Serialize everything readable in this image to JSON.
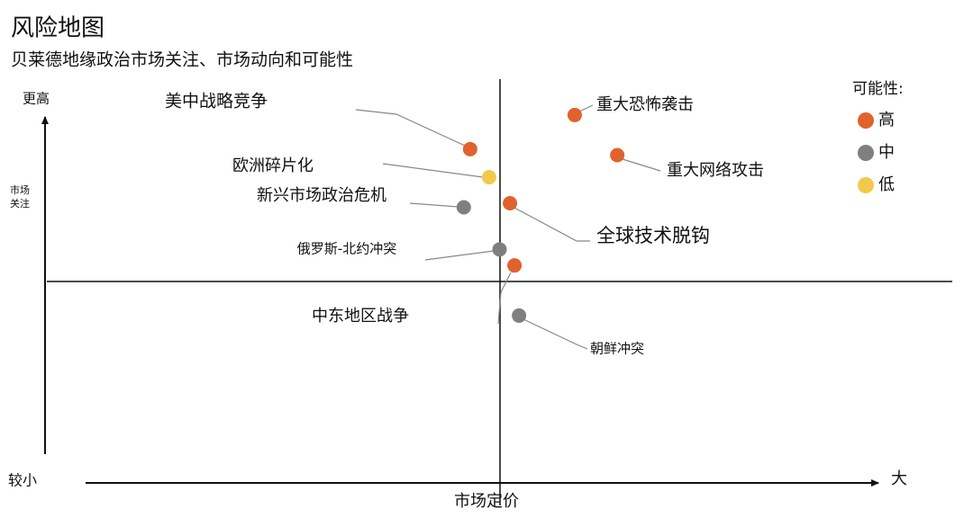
{
  "chart_data": {
    "type": "scatter",
    "title": "风险地图",
    "subtitle": "贝莱德地缘政治市场关注、市场动向和可能性",
    "xlabel": "市场定价",
    "x_low_label": "较小",
    "x_high_label": "大",
    "ylabel": [
      "市场",
      "关注"
    ],
    "y_high_label": "更高",
    "legend_title": "可能性:",
    "legend": "upper right",
    "xlim": [
      -10,
      10
    ],
    "ylim": [
      -10,
      10
    ],
    "series": [
      {
        "name": "高",
        "color": "#e0622d",
        "x": [
          -0.65,
          0.33,
          0.23,
          1.66,
          2.6
        ],
        "y": [
          6.6,
          0.8,
          3.9,
          8.3,
          6.3
        ],
        "labels": [
          "美中战略竞争",
          "中东地区战争",
          "全球技术脱钩",
          "重大恐怖袭击",
          "重大网络攻击"
        ]
      },
      {
        "name": "中",
        "color": "#7f7f7f",
        "x": [
          -0.79,
          0,
          0.43
        ],
        "y": [
          3.7,
          1.6,
          -1.7
        ],
        "labels": [
          "新兴市场政治危机",
          "俄罗斯-北约冲突",
          "朝鲜冲突"
        ]
      },
      {
        "name": "低",
        "color": "#f2c94c",
        "x": [
          -0.23
        ],
        "y": [
          5.2
        ],
        "labels": [
          "欧洲碎片化"
        ]
      }
    ]
  }
}
